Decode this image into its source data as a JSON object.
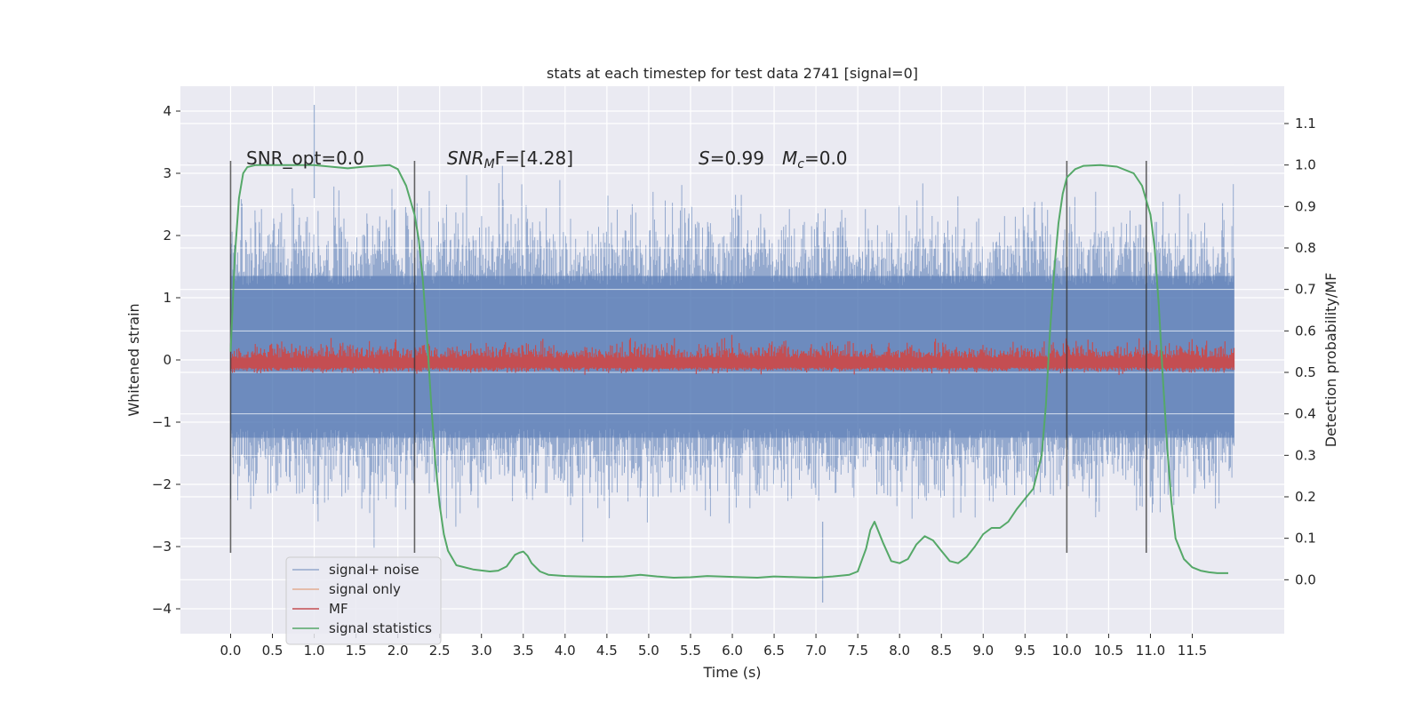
{
  "chart_data": {
    "type": "line",
    "title": "stats at each timestep for test data 2741 [signal=0]",
    "xlabel": "Time (s)",
    "ylabel": "Whitened strain",
    "ylabel_right": "Detection probability/MF",
    "xlim": [
      -0.6,
      12.6
    ],
    "ylim": [
      -4.4,
      4.4
    ],
    "ylim_right": [
      -0.13,
      1.19
    ],
    "x_ticks": [
      "0.0",
      "0.5",
      "1.0",
      "1.5",
      "2.0",
      "2.5",
      "3.0",
      "3.5",
      "4.0",
      "4.5",
      "5.0",
      "5.5",
      "6.0",
      "6.5",
      "7.0",
      "7.5",
      "8.0",
      "8.5",
      "9.0",
      "9.5",
      "10.0",
      "10.5",
      "11.0",
      "11.5"
    ],
    "y_ticks": [
      "4",
      "3",
      "2",
      "1",
      "0",
      "−1",
      "−2",
      "−3",
      "−4"
    ],
    "y_ticks_right": [
      "1.1",
      "1.0",
      "0.9",
      "0.8",
      "0.7",
      "0.6",
      "0.5",
      "0.4",
      "0.3",
      "0.2",
      "0.1",
      "0.0"
    ],
    "grid": true,
    "legend_position": "lower-left",
    "annotations": {
      "snr_opt": "SNR_opt=0.0",
      "snr_mf_main": "SNR",
      "snr_mf_sub": "M",
      "snr_mf_rest": "F=[4.28]",
      "s_main": "S",
      "s_rest": "=0.99",
      "mc_main": "M",
      "mc_sub": "c",
      "mc_rest": "=0.0"
    },
    "series": [
      {
        "name": "signal+ noise",
        "color": "#4c72b0",
        "opacity": 0.5,
        "axis": "left",
        "kind": "noise",
        "typical_range": [
          -2.6,
          2.6
        ],
        "extremes": {
          "max": 4.1,
          "min": -3.9
        },
        "x_range": [
          0.0,
          12.0
        ]
      },
      {
        "name": "signal only",
        "color": "#dd8452",
        "opacity": 0.6,
        "axis": "left",
        "kind": "flat",
        "value": 0.0
      },
      {
        "name": "MF",
        "color": "#c44e52",
        "axis": "right",
        "kind": "noise",
        "typical_range": [
          0.5,
          0.55
        ],
        "extremes": {
          "max": 0.65,
          "min": 0.49
        }
      },
      {
        "name": "signal statistics",
        "color": "#55a868",
        "axis": "right",
        "kind": "curve",
        "x": [
          0.0,
          0.05,
          0.1,
          0.15,
          0.2,
          0.3,
          0.5,
          1.0,
          1.4,
          1.6,
          1.9,
          2.0,
          2.1,
          2.2,
          2.25,
          2.3,
          2.35,
          2.4,
          2.45,
          2.5,
          2.55,
          2.6,
          2.7,
          2.9,
          3.1,
          3.2,
          3.3,
          3.4,
          3.45,
          3.5,
          3.55,
          3.6,
          3.7,
          3.8,
          4.0,
          4.2,
          4.5,
          4.7,
          4.9,
          5.1,
          5.3,
          5.5,
          5.7,
          6.0,
          6.3,
          6.5,
          6.8,
          7.0,
          7.2,
          7.4,
          7.5,
          7.6,
          7.65,
          7.7,
          7.8,
          7.9,
          8.0,
          8.1,
          8.2,
          8.3,
          8.4,
          8.5,
          8.6,
          8.7,
          8.8,
          8.9,
          9.0,
          9.1,
          9.2,
          9.3,
          9.4,
          9.5,
          9.6,
          9.7,
          9.75,
          9.8,
          9.85,
          9.9,
          9.95,
          10.0,
          10.1,
          10.2,
          10.4,
          10.6,
          10.8,
          10.9,
          11.0,
          11.05,
          11.1,
          11.15,
          11.2,
          11.25,
          11.3,
          11.4,
          11.5,
          11.6,
          11.7,
          11.8,
          11.93
        ],
        "y": [
          0.55,
          0.78,
          0.92,
          0.98,
          0.995,
          1.0,
          1.0,
          1.0,
          0.992,
          0.996,
          1.0,
          0.99,
          0.95,
          0.88,
          0.82,
          0.72,
          0.58,
          0.42,
          0.28,
          0.18,
          0.11,
          0.07,
          0.035,
          0.025,
          0.02,
          0.022,
          0.032,
          0.06,
          0.065,
          0.068,
          0.058,
          0.04,
          0.02,
          0.012,
          0.009,
          0.008,
          0.007,
          0.008,
          0.012,
          0.008,
          0.005,
          0.006,
          0.009,
          0.007,
          0.005,
          0.008,
          0.006,
          0.005,
          0.008,
          0.012,
          0.02,
          0.075,
          0.12,
          0.14,
          0.09,
          0.045,
          0.04,
          0.05,
          0.085,
          0.105,
          0.095,
          0.07,
          0.045,
          0.04,
          0.055,
          0.08,
          0.11,
          0.125,
          0.125,
          0.14,
          0.17,
          0.195,
          0.22,
          0.3,
          0.42,
          0.6,
          0.75,
          0.86,
          0.93,
          0.97,
          0.99,
          0.998,
          1.0,
          0.996,
          0.98,
          0.95,
          0.88,
          0.8,
          0.66,
          0.48,
          0.32,
          0.19,
          0.1,
          0.05,
          0.03,
          0.022,
          0.018,
          0.016,
          0.016
        ]
      }
    ],
    "vlines_x": [
      0.0,
      2.2,
      10.0,
      10.95
    ]
  }
}
